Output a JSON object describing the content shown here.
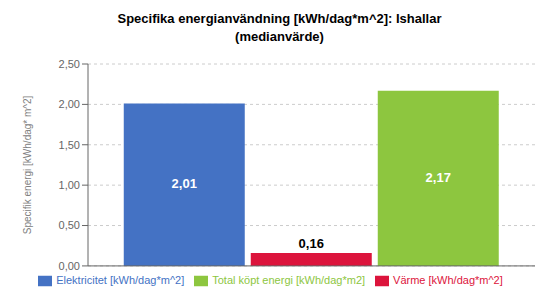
{
  "chart_data": {
    "type": "bar",
    "title": "Specifika energianvändning [kWh/dag*m^2]: Ishallar",
    "subtitle": "(medianvärde)",
    "y_label": "Specifik energi [kWh/dag* m^2]",
    "categories": [
      null
    ],
    "series": [
      {
        "name": "Elektricitet [kWh/dag*m^2]",
        "color": "#4472C4",
        "values": [
          2.01
        ],
        "value_labels": [
          "2,01"
        ]
      },
      {
        "name": "Värme [kWh/dag*m^2]",
        "color": "#DC143C",
        "values": [
          0.16
        ],
        "value_labels": [
          "0,16"
        ]
      },
      {
        "name": "Total köpt energi [kWh/dag*m2]",
        "color": "#8DC63F",
        "values": [
          2.17
        ],
        "value_labels": [
          "2,17"
        ]
      }
    ],
    "ylim": [
      0,
      2.5
    ],
    "yticks": [
      {
        "value": 0.0,
        "label": "0,00"
      },
      {
        "value": 0.5,
        "label": "0,50"
      },
      {
        "value": 1.0,
        "label": "1,00"
      },
      {
        "value": 1.5,
        "label": "1,50"
      },
      {
        "value": 2.0,
        "label": "2,00"
      },
      {
        "value": 2.5,
        "label": "2,50"
      }
    ],
    "grid": true,
    "legend": "bottom",
    "data_labels": true,
    "tick_labels": "y"
  }
}
